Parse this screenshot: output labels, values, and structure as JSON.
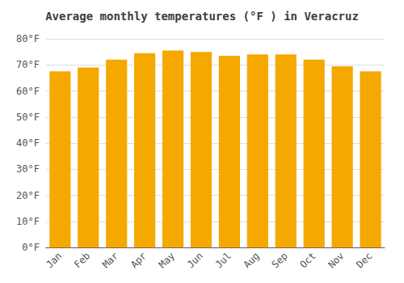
{
  "chart_data": {
    "type": "bar",
    "title": "Average monthly temperatures (°F ) in Veracruz",
    "categories": [
      "Jan",
      "Feb",
      "Mar",
      "Apr",
      "May",
      "Jun",
      "Jul",
      "Aug",
      "Sep",
      "Oct",
      "Nov",
      "Dec"
    ],
    "values": [
      67.5,
      69.0,
      72.0,
      74.5,
      75.5,
      75.0,
      73.5,
      74.0,
      74.0,
      72.0,
      69.5,
      67.5
    ],
    "color": "#F5A800",
    "ylim": [
      0,
      80
    ],
    "yticks": [
      {
        "value": 0,
        "label": "0°F"
      },
      {
        "value": 10,
        "label": "10°F"
      },
      {
        "value": 20,
        "label": "20°F"
      },
      {
        "value": 30,
        "label": "30°F"
      },
      {
        "value": 40,
        "label": "40°F"
      },
      {
        "value": 50,
        "label": "50°F"
      },
      {
        "value": 60,
        "label": "60°F"
      },
      {
        "value": 70,
        "label": "70°F"
      },
      {
        "value": 80,
        "label": "80°F"
      }
    ],
    "grid": true
  }
}
